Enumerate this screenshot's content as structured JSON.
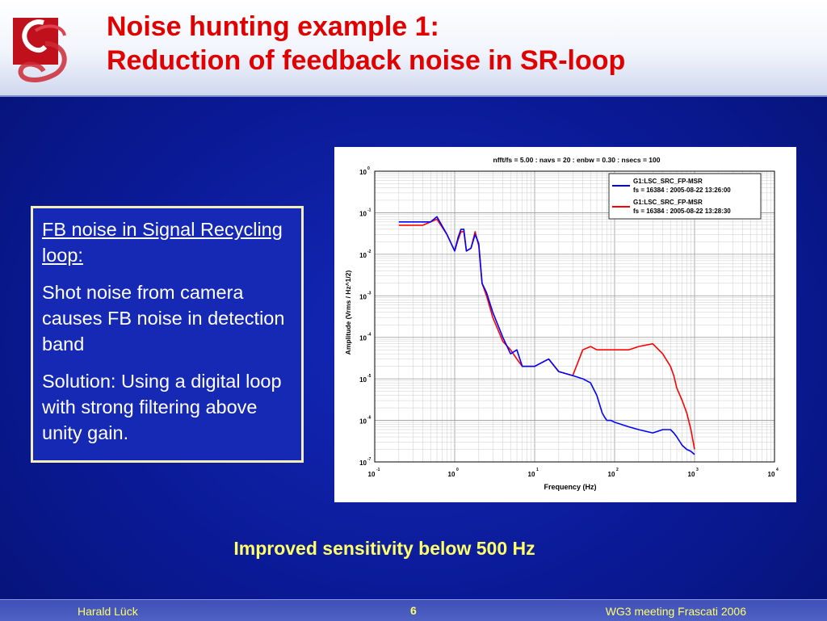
{
  "slide": {
    "title_line1": "Noise hunting example 1:",
    "title_line2": "Reduction of feedback noise in SR-loop",
    "box": {
      "heading": "FB noise in Signal Recycling loop:",
      "paragraph1": "Shot noise from camera causes FB noise in detection band",
      "paragraph2": "Solution: Using a digital loop with strong filtering above unity gain."
    },
    "caption": "Improved sensitivity below 500 Hz",
    "footer": {
      "author": "Harald Lück",
      "page": "6",
      "event": "WG3 meeting Frascati 2006"
    },
    "colors": {
      "title": "#e00000",
      "caption": "#ffff66",
      "background": "#0a1a96"
    }
  },
  "chart_data": {
    "type": "line",
    "title": "nfft/fs = 5.00 : navs = 20 : enbw = 0.30 : nsecs = 100",
    "xlabel": "Frequency (Hz)",
    "ylabel": "Amplitude (Vrms / Hz^1/2)",
    "xscale": "log",
    "yscale": "log",
    "xlim": [
      0.1,
      10000
    ],
    "ylim": [
      1e-07,
      1
    ],
    "x_ticks": [
      {
        "base": "10",
        "exp": "-1"
      },
      {
        "base": "10",
        "exp": "0"
      },
      {
        "base": "10",
        "exp": "1"
      },
      {
        "base": "10",
        "exp": "2"
      },
      {
        "base": "10",
        "exp": "3"
      },
      {
        "base": "10",
        "exp": "4"
      }
    ],
    "y_ticks": [
      {
        "base": "10",
        "exp": "0"
      },
      {
        "base": "10",
        "exp": "-1"
      },
      {
        "base": "10",
        "exp": "-2"
      },
      {
        "base": "10",
        "exp": "-3"
      },
      {
        "base": "10",
        "exp": "-4"
      },
      {
        "base": "10",
        "exp": "-5"
      },
      {
        "base": "10",
        "exp": "-6"
      },
      {
        "base": "10",
        "exp": "-7"
      }
    ],
    "grid": true,
    "legend_position": "top-right",
    "series": [
      {
        "name": "G1:LSC_SRC_FP-MSR",
        "detail": "fs = 16384 : 2005-08-22 13:26:00",
        "color": "#0000ff",
        "x": [
          0.2,
          0.3,
          0.4,
          0.5,
          0.6,
          0.8,
          1.0,
          1.1,
          1.2,
          1.3,
          1.4,
          1.6,
          1.8,
          2.0,
          2.2,
          2.5,
          3,
          4,
          5,
          6,
          7,
          10,
          15,
          20,
          30,
          40,
          50,
          60,
          70,
          75,
          80,
          90,
          100,
          150,
          200,
          300,
          400,
          500,
          550,
          600,
          700,
          800,
          900,
          1000
        ],
        "y": [
          0.06,
          0.06,
          0.06,
          0.06,
          0.08,
          0.03,
          0.012,
          0.025,
          0.04,
          0.04,
          0.012,
          0.014,
          0.03,
          0.018,
          0.002,
          0.0012,
          0.0004,
          0.0001,
          4e-05,
          5e-05,
          2e-05,
          2e-05,
          3e-05,
          1.5e-05,
          1.2e-05,
          1e-05,
          8e-06,
          4e-06,
          1.5e-06,
          1.2e-06,
          1e-06,
          1e-06,
          9e-07,
          7e-07,
          6e-07,
          5e-07,
          6e-07,
          6e-07,
          5e-07,
          4e-07,
          2.5e-07,
          2e-07,
          1.8e-07,
          1.5e-07
        ]
      },
      {
        "name": "G1:LSC_SRC_FP-MSR",
        "detail": "fs = 16384 : 2005-08-22 13:28:30",
        "color": "#ff0000",
        "x": [
          0.2,
          0.3,
          0.4,
          0.5,
          0.6,
          0.8,
          1.0,
          1.1,
          1.2,
          1.3,
          1.4,
          1.6,
          1.8,
          2.0,
          2.2,
          2.5,
          3,
          4,
          5,
          6,
          7,
          10,
          15,
          20,
          30,
          40,
          50,
          60,
          70,
          100,
          150,
          200,
          300,
          400,
          500,
          550,
          600,
          700,
          800,
          900,
          1000
        ],
        "y": [
          0.05,
          0.05,
          0.05,
          0.06,
          0.07,
          0.03,
          0.012,
          0.022,
          0.035,
          0.035,
          0.012,
          0.014,
          0.035,
          0.016,
          0.002,
          0.001,
          0.0003,
          8e-05,
          5e-05,
          3e-05,
          2e-05,
          2e-05,
          3e-05,
          1.5e-05,
          1.2e-05,
          5e-05,
          6e-05,
          5e-05,
          5e-05,
          5e-05,
          5e-05,
          6e-05,
          7e-05,
          4e-05,
          2e-05,
          1.2e-05,
          6e-06,
          3e-06,
          1.5e-06,
          6e-07,
          2e-07
        ]
      }
    ]
  }
}
